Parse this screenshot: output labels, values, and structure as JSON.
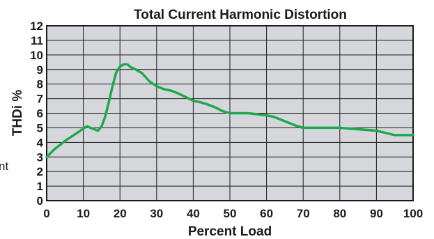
{
  "chart_data": {
    "type": "line",
    "title": "Total Current Harmonic Distortion",
    "xlabel": "Percent Load",
    "ylabel": "THDi %",
    "xlim": [
      0,
      100
    ],
    "ylim": [
      0,
      12
    ],
    "xticks": [
      "0",
      "10",
      "20",
      "30",
      "40",
      "50",
      "60",
      "70",
      "80",
      "90",
      "100"
    ],
    "yticks": [
      "0",
      "1",
      "2",
      "3",
      "4",
      "5",
      "6",
      "7",
      "8",
      "9",
      "10",
      "11",
      "12"
    ],
    "grid": true,
    "legend": "none",
    "series": [
      {
        "color": "#1ea84b",
        "x": [
          0,
          2,
          5,
          8,
          10,
          11,
          12,
          14,
          15,
          16,
          17,
          18,
          19,
          20,
          21,
          22,
          23,
          24,
          26,
          28,
          30,
          32,
          34,
          36,
          38,
          40,
          42,
          44,
          46,
          48,
          50,
          55,
          60,
          62,
          65,
          68,
          70,
          75,
          80,
          85,
          90,
          95,
          100
        ],
        "y": [
          3.0,
          3.5,
          4.1,
          4.6,
          4.95,
          5.1,
          5.0,
          4.8,
          5.1,
          5.8,
          6.8,
          7.9,
          8.8,
          9.2,
          9.35,
          9.35,
          9.15,
          9.05,
          8.75,
          8.2,
          7.85,
          7.65,
          7.55,
          7.35,
          7.1,
          6.85,
          6.75,
          6.6,
          6.4,
          6.15,
          6.0,
          6.0,
          5.85,
          5.75,
          5.45,
          5.15,
          5.0,
          5.0,
          5.0,
          4.9,
          4.8,
          4.5,
          4.5
        ]
      }
    ]
  },
  "fragment_text": "nt",
  "colors": {
    "plot_bg": "#d6d7dd",
    "grid": "#1a1a1a",
    "line": "#1ea84b"
  }
}
